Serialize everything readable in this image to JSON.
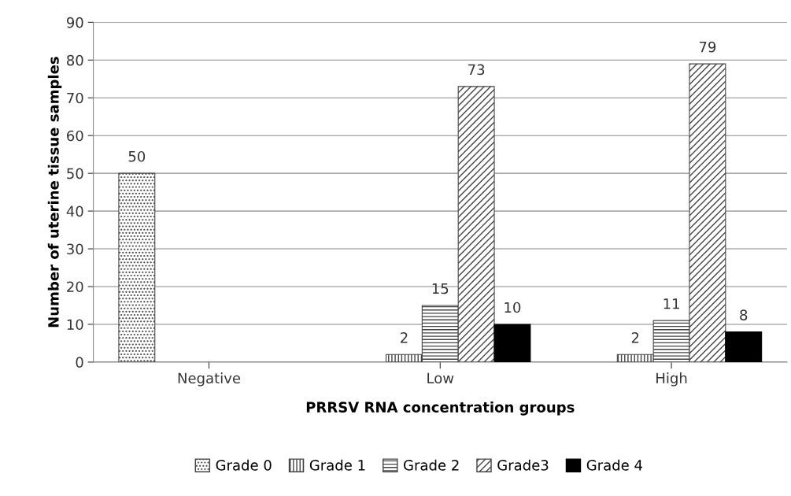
{
  "chart_data": {
    "type": "bar",
    "xlabel": "PRRSV RNA concentration groups",
    "ylabel": "Number of uterine tissue samples",
    "categories": [
      "Negative",
      "Low",
      "High"
    ],
    "series": [
      {
        "name": "Grade 0",
        "color": "#444444",
        "values": [
          50,
          null,
          null
        ]
      },
      {
        "name": "Grade 1",
        "color": "#444444",
        "values": [
          null,
          2,
          2
        ]
      },
      {
        "name": "Grade 2",
        "color": "#444444",
        "values": [
          null,
          15,
          11
        ]
      },
      {
        "name": "Grade3",
        "color": "#444444",
        "values": [
          null,
          73,
          79
        ]
      },
      {
        "name": "Grade 4",
        "color": "#000000",
        "values": [
          null,
          10,
          8
        ]
      }
    ],
    "ylim": [
      0,
      90
    ],
    "yticks": [
      0,
      10,
      20,
      30,
      40,
      50,
      60,
      70,
      80,
      90
    ],
    "grid": "y",
    "legend": "bottom",
    "data_labels": true
  }
}
